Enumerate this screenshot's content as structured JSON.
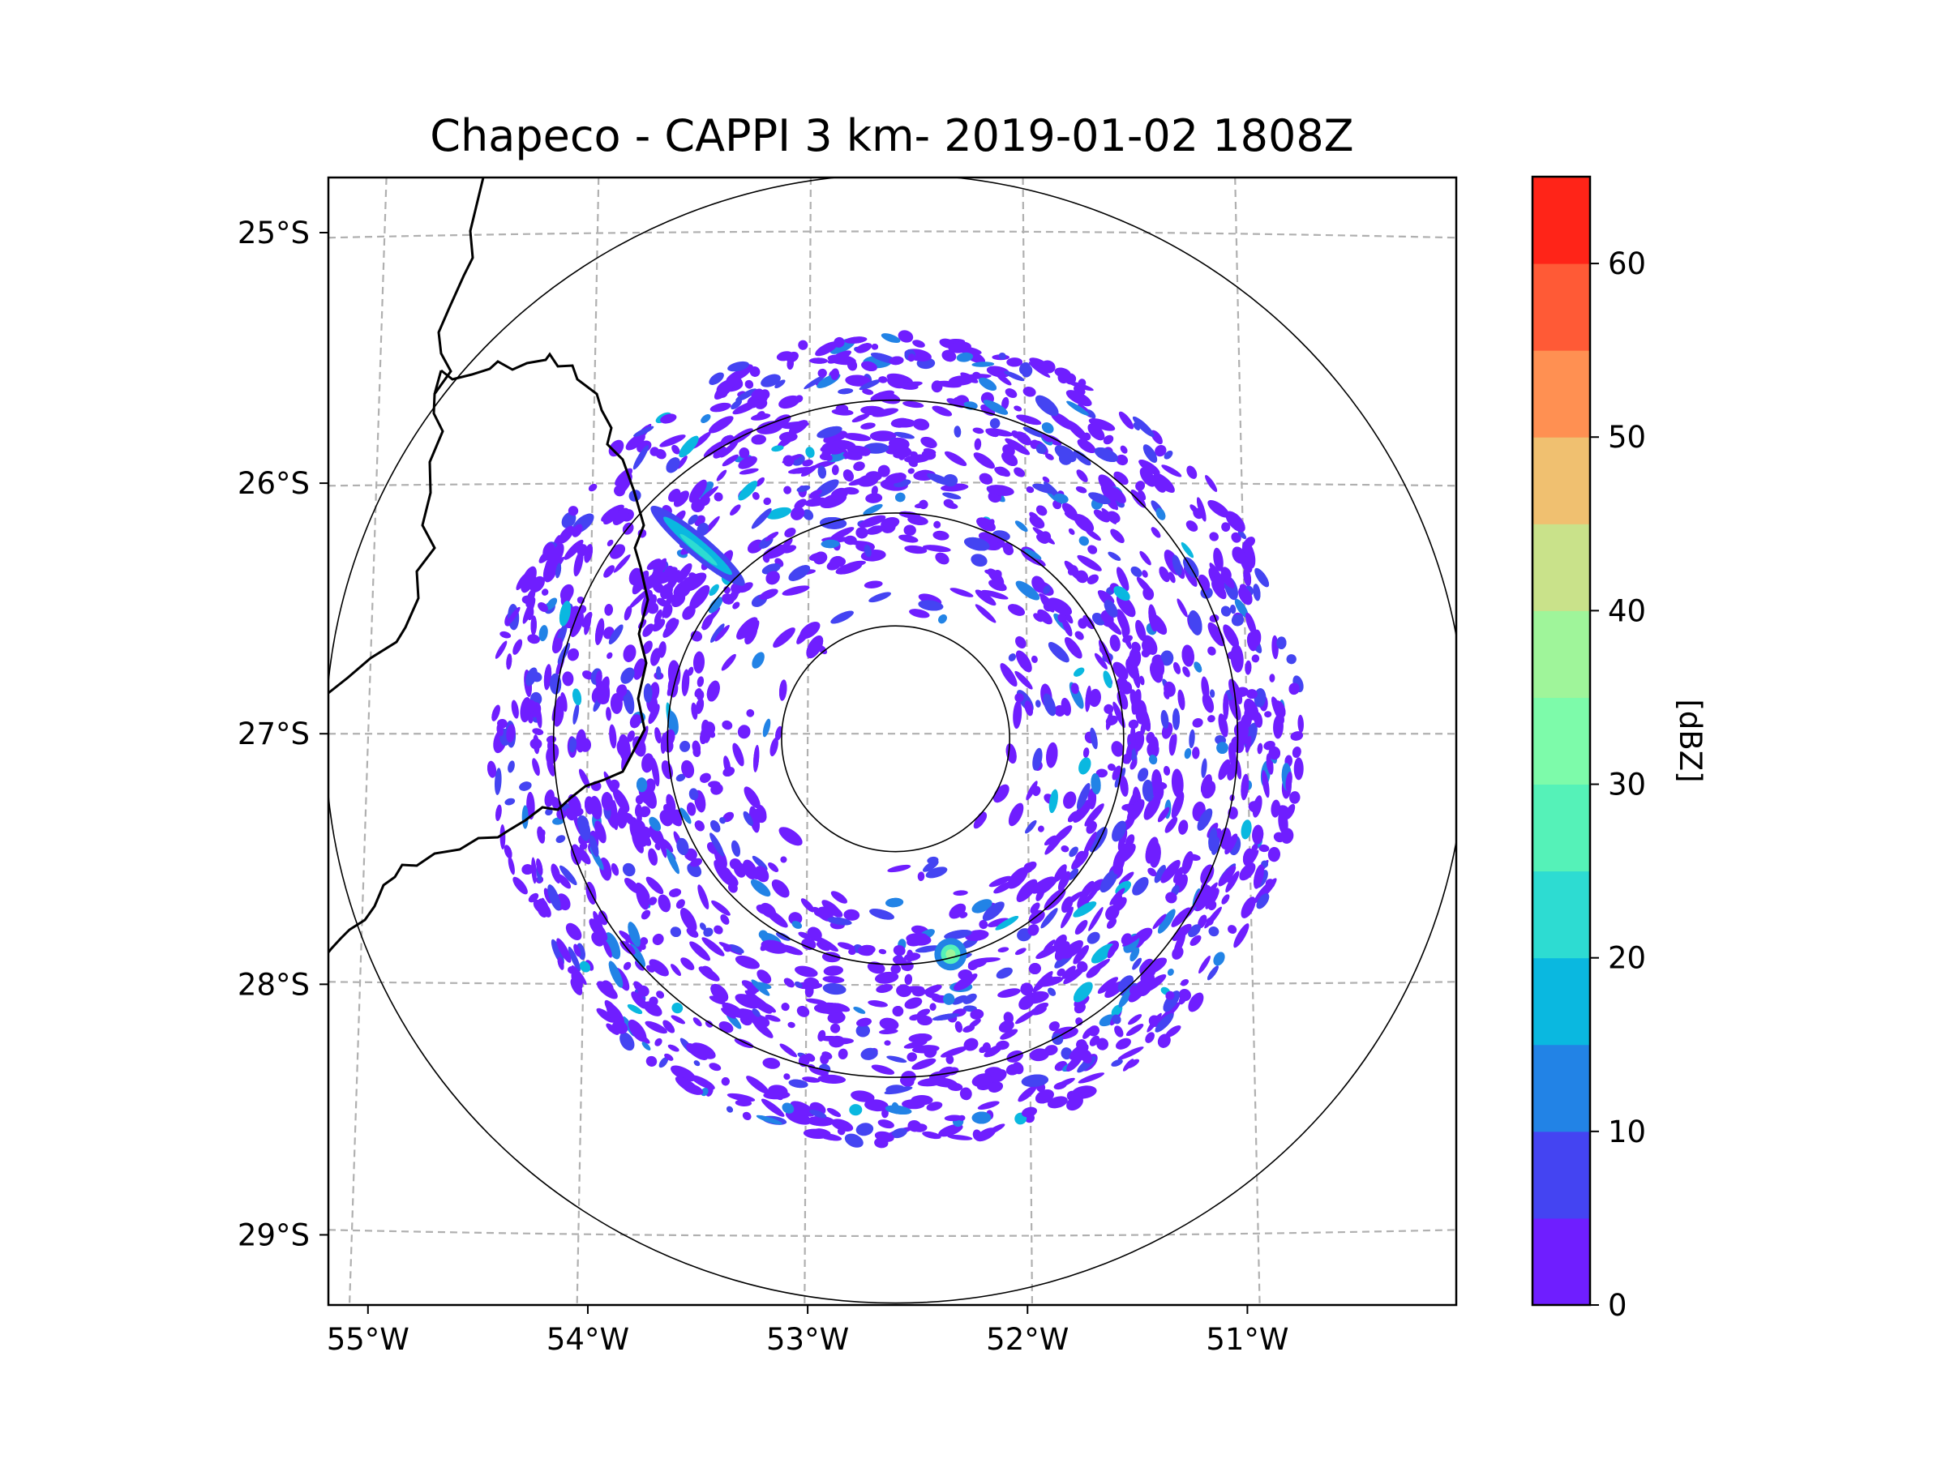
{
  "chart_data": {
    "type": "radar-ppi-map",
    "title": "Chapeco - CAPPI 3 km- 2019-01-02 1808Z",
    "x_axis": {
      "ticks": [
        -55,
        -54,
        -53,
        -52,
        -51
      ],
      "tick_labels": [
        "55°W",
        "54°W",
        "53°W",
        "52°W",
        "51°W"
      ]
    },
    "y_axis": {
      "ticks": [
        -25,
        -26,
        -27,
        -28,
        -29
      ],
      "tick_labels": [
        "25°S",
        "26°S",
        "27°S",
        "28°S",
        "29°S"
      ]
    },
    "extent": {
      "lon_min": -55.18,
      "lon_max": -50.05,
      "lat_min": -29.28,
      "lat_max": -24.78
    },
    "radar_center": {
      "lon": -52.6,
      "lat": -27.02
    },
    "range_rings_km": [
      50,
      100,
      150,
      250
    ],
    "data_coverage_km": 180,
    "gridlines": "dashed",
    "colorbar": {
      "label": "[dBZ]",
      "min": 0,
      "max": 65,
      "tick_values": [
        0,
        10,
        20,
        30,
        40,
        50,
        60
      ],
      "tick_labels": [
        "0",
        "10",
        "20",
        "30",
        "40",
        "50",
        "60"
      ],
      "levels": [
        0,
        5,
        10,
        15,
        20,
        25,
        30,
        35,
        40,
        45,
        50,
        55,
        60,
        65
      ],
      "colors": [
        "#6f1eff",
        "#4444f2",
        "#2283e6",
        "#0ab8e0",
        "#2ddcd2",
        "#55f2b8",
        "#7dfbaa",
        "#9ff59a",
        "#c9e28a",
        "#f0c070",
        "#ff9052",
        "#ff5a36",
        "#ff2418"
      ]
    },
    "notable_echoes": [
      {
        "description": "elongated band NW",
        "lon": -53.5,
        "lat": -26.25,
        "max_dbz": 25
      },
      {
        "description": "cell S of radar",
        "lon": -52.35,
        "lat": -27.88,
        "max_dbz": 35
      }
    ]
  }
}
